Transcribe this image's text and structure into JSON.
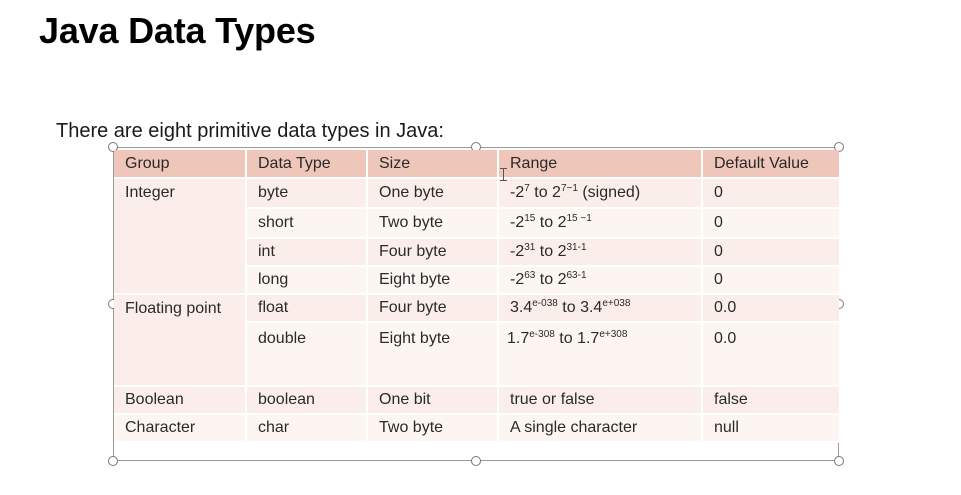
{
  "slide": {
    "title": "Java Data Types",
    "intro": "There are eight primitive data types in Java:"
  },
  "table": {
    "headers": [
      "Group",
      "Data Type",
      "Size",
      "Range",
      "Default Value"
    ],
    "rows": [
      {
        "group": "Integer",
        "type": "byte",
        "size": "One byte",
        "range": {
          "a": "-2",
          "as": "7",
          "m": " to 2",
          "bs": "7−1",
          "e": " (signed)"
        },
        "default": "0"
      },
      {
        "group": "",
        "type": "short",
        "size": "Two byte",
        "range": {
          "a": "-2",
          "as": "15",
          "m": " to 2",
          "bs": "15 −1",
          "e": ""
        },
        "default": "0"
      },
      {
        "group": "",
        "type": "int",
        "size": "Four byte",
        "range": {
          "a": "-2",
          "as": "31",
          "m": " to 2",
          "bs": "31-1",
          "e": ""
        },
        "default": "0"
      },
      {
        "group": "",
        "type": "long",
        "size": "Eight byte",
        "range": {
          "a": "-2",
          "as": "63",
          "m": " to 2",
          "bs": "63-1",
          "e": ""
        },
        "default": "0"
      },
      {
        "group": "Floating point",
        "type": "float",
        "size": "Four byte",
        "range": {
          "a": "3.4",
          "as": "e-038",
          "m": " to 3.4",
          "bs": "e+038",
          "e": ""
        },
        "default": "0.0"
      },
      {
        "group": "",
        "type": "double",
        "size": "Eight byte",
        "range": {
          "a": "1.7",
          "as": "e-308",
          "m": " to 1.7",
          "bs": "e+308",
          "e": ""
        },
        "default": "0.0"
      },
      {
        "group": "Boolean",
        "type": "boolean",
        "size": "One bit",
        "range": {
          "a": "true or false",
          "as": "",
          "m": "",
          "bs": "",
          "e": ""
        },
        "default": "false"
      },
      {
        "group": "Character",
        "type": "char",
        "size": "Two byte",
        "range": {
          "a": "A single character",
          "as": "",
          "m": "",
          "bs": "",
          "e": ""
        },
        "default": "null"
      }
    ]
  },
  "colors": {
    "header_bg": "#eec6ba",
    "row_bg": "#fbeeea",
    "row_alt_bg": "#fdf5f2",
    "bottom_rule": "#4f9a94"
  }
}
